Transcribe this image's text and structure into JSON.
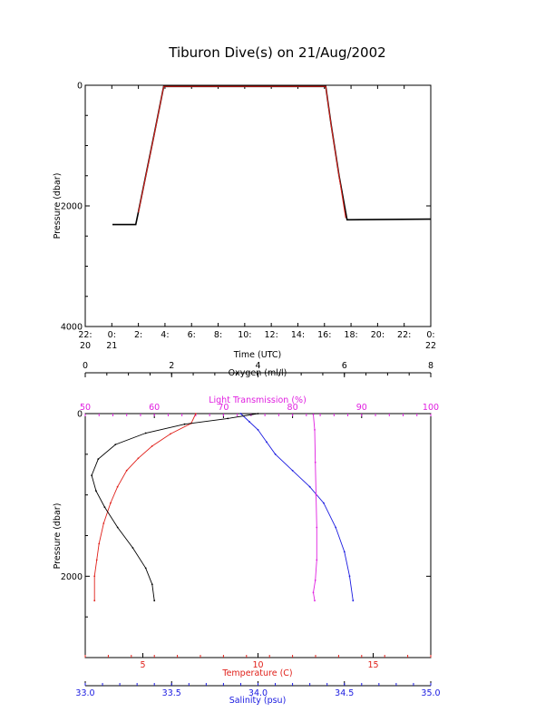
{
  "title": "Tiburon Dive(s) on 21/Aug/2002",
  "colors": {
    "temperature": "#e0201a",
    "salinity": "#1a1ae0",
    "oxygen": "#000000",
    "light_transmission": "#e020e0",
    "dive_track_1": "#000000",
    "dive_track_2": "#e0201a"
  },
  "chart_data": [
    {
      "type": "line",
      "xlabel": "Time (UTC)",
      "ylabel": "Pressure (dbar)",
      "xlim": [
        -2,
        24
      ],
      "ylim": [
        4000,
        0
      ],
      "x_ticks": [
        {
          "v": -2,
          "l1": "22:",
          "l2": "20"
        },
        {
          "v": 0,
          "l1": "0:",
          "l2": "21"
        },
        {
          "v": 2,
          "l1": "2:",
          "l2": ""
        },
        {
          "v": 4,
          "l1": "4:",
          "l2": ""
        },
        {
          "v": 6,
          "l1": "6:",
          "l2": ""
        },
        {
          "v": 8,
          "l1": "8:",
          "l2": ""
        },
        {
          "v": 10,
          "l1": "10:",
          "l2": ""
        },
        {
          "v": 12,
          "l1": "12:",
          "l2": ""
        },
        {
          "v": 14,
          "l1": "14:",
          "l2": ""
        },
        {
          "v": 16,
          "l1": "16:",
          "l2": ""
        },
        {
          "v": 18,
          "l1": "18:",
          "l2": ""
        },
        {
          "v": 20,
          "l1": "20:",
          "l2": ""
        },
        {
          "v": 22,
          "l1": "22:",
          "l2": ""
        },
        {
          "v": 24,
          "l1": "0:",
          "l2": "22"
        }
      ],
      "y_ticks": [
        {
          "v": 0,
          "l": "0"
        },
        {
          "v": 2000,
          "l": "2000"
        },
        {
          "v": 4000,
          "l": "4000"
        }
      ],
      "series": [
        {
          "color_key": "dive_track_1",
          "points": [
            [
              0.05,
              2310
            ],
            [
              1.8,
              2310
            ],
            [
              2.0,
              2100
            ],
            [
              3.2,
              800
            ],
            [
              3.9,
              20
            ],
            [
              16.1,
              20
            ],
            [
              16.5,
              650
            ],
            [
              17.1,
              1500
            ],
            [
              17.7,
              2230
            ],
            [
              24.0,
              2220
            ]
          ]
        },
        {
          "color_key": "dive_track_2",
          "points": [
            [
              2.0,
              2110
            ],
            [
              3.2,
              810
            ],
            [
              3.9,
              20
            ],
            [
              16.1,
              20
            ],
            [
              16.5,
              660
            ],
            [
              17.1,
              1510
            ],
            [
              17.6,
              2200
            ]
          ]
        }
      ]
    },
    {
      "type": "scatter",
      "ylabel": "Pressure (dbar)",
      "ylim": [
        3000,
        0
      ],
      "y_ticks": [
        {
          "v": 0,
          "l": "0"
        },
        {
          "v": 2000,
          "l": "2000"
        }
      ],
      "axes": [
        {
          "id": "oxygen",
          "label": "Oxygen (ml/l)",
          "position": "top",
          "color_key": "oxygen",
          "range": [
            0,
            8
          ],
          "ticks": [
            0,
            2,
            4,
            6,
            8
          ]
        },
        {
          "id": "light",
          "label": "Light Transmission (%)",
          "position": "top",
          "color_key": "light_transmission",
          "range": [
            50,
            100
          ],
          "ticks": [
            50,
            60,
            70,
            80,
            90,
            100
          ]
        },
        {
          "id": "temperature",
          "label": "Temperature (C)",
          "position": "bottom",
          "color_key": "temperature",
          "range": [
            2.5,
            17.5
          ],
          "ticks": [
            5,
            10,
            15
          ]
        },
        {
          "id": "salinity",
          "label": "Salinity (psu)",
          "position": "bottom",
          "color_key": "salinity",
          "range": [
            33.0,
            35.0
          ],
          "ticks": [
            "33.0",
            "33.5",
            "34.0",
            "34.5",
            "35.0"
          ]
        }
      ],
      "series": [
        {
          "axis": "temperature",
          "color_key": "temperature",
          "points": [
            [
              7.3,
              0
            ],
            [
              7.1,
              120
            ],
            [
              6.2,
              250
            ],
            [
              5.4,
              400
            ],
            [
              4.8,
              550
            ],
            [
              4.3,
              700
            ],
            [
              3.9,
              900
            ],
            [
              3.6,
              1100
            ],
            [
              3.3,
              1350
            ],
            [
              3.1,
              1600
            ],
            [
              3.0,
              1800
            ],
            [
              2.9,
              2000
            ],
            [
              2.9,
              2300
            ]
          ]
        },
        {
          "axis": "salinity",
          "color_key": "salinity",
          "points": [
            [
              33.9,
              0
            ],
            [
              33.95,
              100
            ],
            [
              34.0,
              200
            ],
            [
              34.05,
              350
            ],
            [
              34.1,
              500
            ],
            [
              34.2,
              700
            ],
            [
              34.3,
              900
            ],
            [
              34.38,
              1100
            ],
            [
              34.45,
              1400
            ],
            [
              34.5,
              1700
            ],
            [
              34.53,
              2000
            ],
            [
              34.55,
              2300
            ]
          ]
        },
        {
          "axis": "light",
          "color_key": "light_transmission",
          "points": [
            [
              83.0,
              10
            ],
            [
              83.2,
              200
            ],
            [
              83.3,
              600
            ],
            [
              83.4,
              1000
            ],
            [
              83.5,
              1400
            ],
            [
              83.5,
              1800
            ],
            [
              83.3,
              2050
            ],
            [
              83.0,
              2200
            ],
            [
              83.2,
              2300
            ]
          ]
        },
        {
          "axis": "oxygen",
          "color_key": "oxygen",
          "points": [
            [
              4.0,
              0
            ],
            [
              3.3,
              60
            ],
            [
              2.3,
              130
            ],
            [
              1.4,
              240
            ],
            [
              0.7,
              380
            ],
            [
              0.3,
              560
            ],
            [
              0.15,
              760
            ],
            [
              0.25,
              950
            ],
            [
              0.45,
              1150
            ],
            [
              0.75,
              1400
            ],
            [
              1.1,
              1650
            ],
            [
              1.4,
              1900
            ],
            [
              1.55,
              2100
            ],
            [
              1.6,
              2300
            ]
          ]
        }
      ]
    }
  ]
}
